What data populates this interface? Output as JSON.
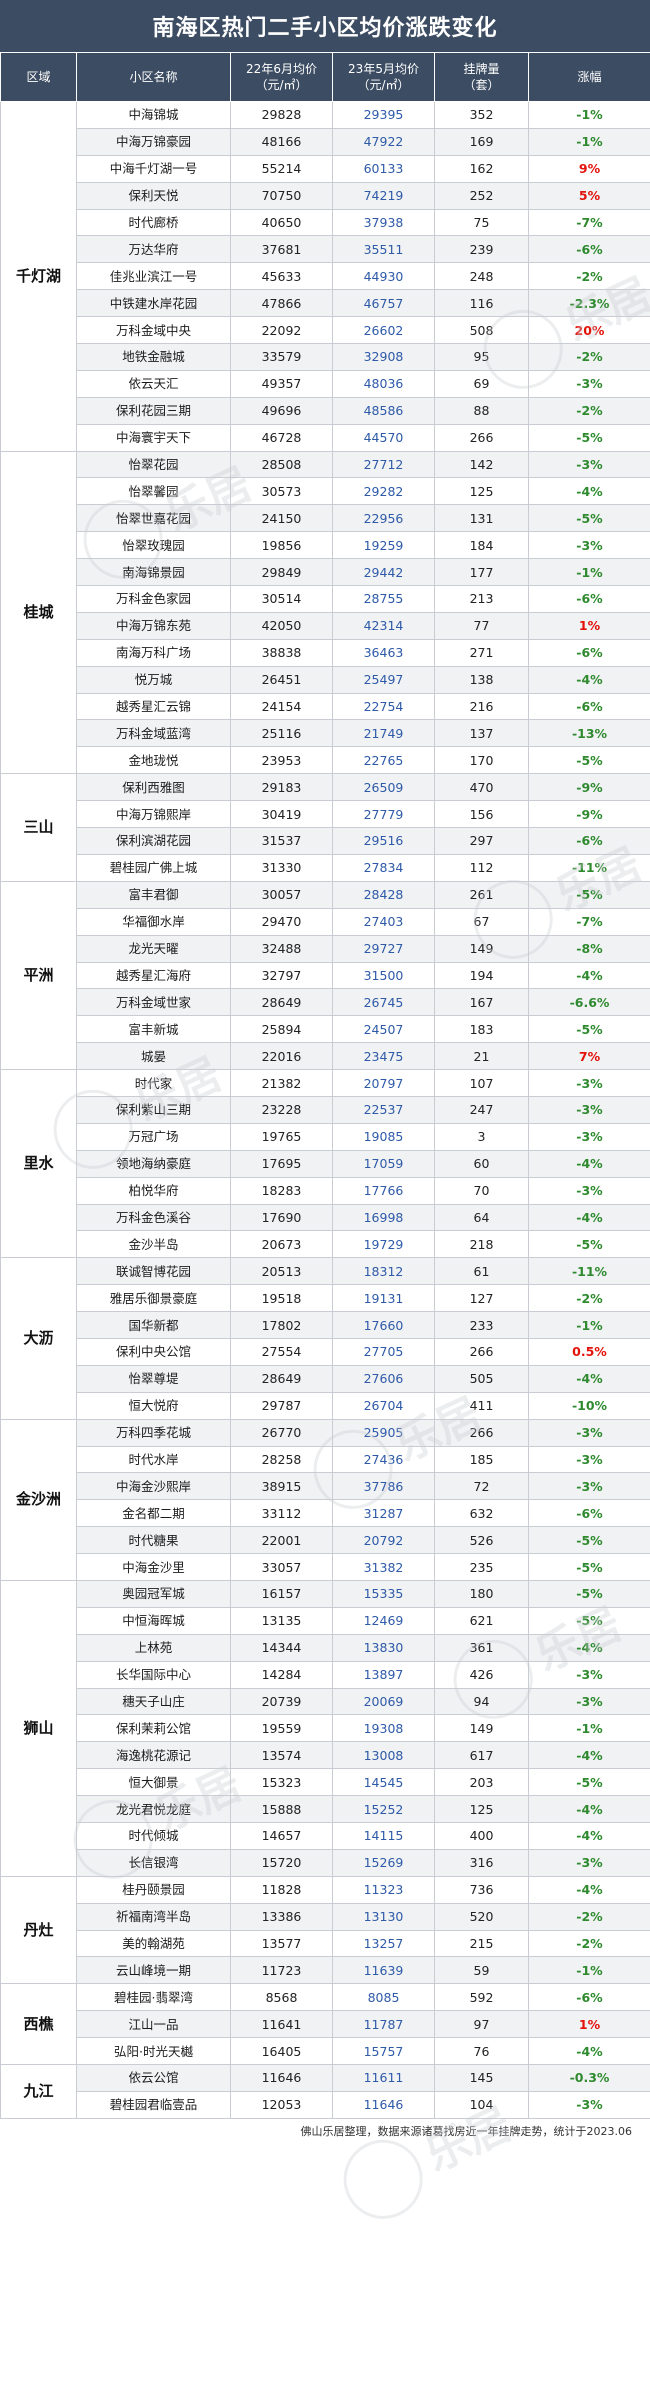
{
  "title": "南海区热门二手小区均价涨跌变化",
  "headers": {
    "district": "区域",
    "name": "小区名称",
    "price22_line1": "22年6月均价",
    "price22_line2": "（元/㎡）",
    "price23_line1": "23年5月均价",
    "price23_line2": "（元/㎡）",
    "listing_line1": "挂牌量",
    "listing_line2": "（套）",
    "change": "涨幅"
  },
  "colors": {
    "header_bg": "#3c4c62",
    "increase": "#e3120b",
    "decrease": "#2f8a2f",
    "price23": "#2e5aa8"
  },
  "groups": [
    {
      "district": "千灯湖",
      "rows": [
        {
          "name": "中海锦城",
          "p22": "29828",
          "p23": "29395",
          "listing": "352",
          "change": "-1%"
        },
        {
          "name": "中海万锦豪园",
          "p22": "48166",
          "p23": "47922",
          "listing": "169",
          "change": "-1%"
        },
        {
          "name": "中海千灯湖一号",
          "p22": "55214",
          "p23": "60133",
          "listing": "162",
          "change": "9%"
        },
        {
          "name": "保利天悦",
          "p22": "70750",
          "p23": "74219",
          "listing": "252",
          "change": "5%"
        },
        {
          "name": "时代廊桥",
          "p22": "40650",
          "p23": "37938",
          "listing": "75",
          "change": "-7%"
        },
        {
          "name": "万达华府",
          "p22": "37681",
          "p23": "35511",
          "listing": "239",
          "change": "-6%"
        },
        {
          "name": "佳兆业滨江一号",
          "p22": "45633",
          "p23": "44930",
          "listing": "248",
          "change": "-2%"
        },
        {
          "name": "中铁建水岸花园",
          "p22": "47866",
          "p23": "46757",
          "listing": "116",
          "change": "-2.3%"
        },
        {
          "name": "万科金域中央",
          "p22": "22092",
          "p23": "26602",
          "listing": "508",
          "change": "20%"
        },
        {
          "name": "地铁金融城",
          "p22": "33579",
          "p23": "32908",
          "listing": "95",
          "change": "-2%"
        },
        {
          "name": "依云天汇",
          "p22": "49357",
          "p23": "48036",
          "listing": "69",
          "change": "-3%"
        },
        {
          "name": "保利花园三期",
          "p22": "49696",
          "p23": "48586",
          "listing": "88",
          "change": "-2%"
        },
        {
          "name": "中海寰宇天下",
          "p22": "46728",
          "p23": "44570",
          "listing": "266",
          "change": "-5%"
        }
      ]
    },
    {
      "district": "桂城",
      "rows": [
        {
          "name": "怡翠花园",
          "p22": "28508",
          "p23": "27712",
          "listing": "142",
          "change": "-3%"
        },
        {
          "name": "怡翠馨园",
          "p22": "30573",
          "p23": "29282",
          "listing": "125",
          "change": "-4%"
        },
        {
          "name": "怡翠世嘉花园",
          "p22": "24150",
          "p23": "22956",
          "listing": "131",
          "change": "-5%"
        },
        {
          "name": "怡翠玫瑰园",
          "p22": "19856",
          "p23": "19259",
          "listing": "184",
          "change": "-3%"
        },
        {
          "name": "南海锦景园",
          "p22": "29849",
          "p23": "29442",
          "listing": "177",
          "change": "-1%"
        },
        {
          "name": "万科金色家园",
          "p22": "30514",
          "p23": "28755",
          "listing": "213",
          "change": "-6%"
        },
        {
          "name": "中海万锦东苑",
          "p22": "42050",
          "p23": "42314",
          "listing": "77",
          "change": "1%"
        },
        {
          "name": "南海万科广场",
          "p22": "38838",
          "p23": "36463",
          "listing": "271",
          "change": "-6%"
        },
        {
          "name": "悦万城",
          "p22": "26451",
          "p23": "25497",
          "listing": "138",
          "change": "-4%"
        },
        {
          "name": "越秀星汇云锦",
          "p22": "24154",
          "p23": "22754",
          "listing": "216",
          "change": "-6%"
        },
        {
          "name": "万科金域蓝湾",
          "p22": "25116",
          "p23": "21749",
          "listing": "137",
          "change": "-13%"
        },
        {
          "name": "金地珑悦",
          "p22": "23953",
          "p23": "22765",
          "listing": "170",
          "change": "-5%"
        }
      ]
    },
    {
      "district": "三山",
      "rows": [
        {
          "name": "保利西雅图",
          "p22": "29183",
          "p23": "26509",
          "listing": "470",
          "change": "-9%"
        },
        {
          "name": "中海万锦熙岸",
          "p22": "30419",
          "p23": "27779",
          "listing": "156",
          "change": "-9%"
        },
        {
          "name": "保利滨湖花园",
          "p22": "31537",
          "p23": "29516",
          "listing": "297",
          "change": "-6%"
        },
        {
          "name": "碧桂园广佛上城",
          "p22": "31330",
          "p23": "27834",
          "listing": "112",
          "change": "-11%"
        }
      ]
    },
    {
      "district": "平洲",
      "rows": [
        {
          "name": "富丰君御",
          "p22": "30057",
          "p23": "28428",
          "listing": "261",
          "change": "-5%"
        },
        {
          "name": "华福御水岸",
          "p22": "29470",
          "p23": "27403",
          "listing": "67",
          "change": "-7%"
        },
        {
          "name": "龙光天曜",
          "p22": "32488",
          "p23": "29727",
          "listing": "149",
          "change": "-8%"
        },
        {
          "name": "越秀星汇海府",
          "p22": "32797",
          "p23": "31500",
          "listing": "194",
          "change": "-4%"
        },
        {
          "name": "万科金域世家",
          "p22": "28649",
          "p23": "26745",
          "listing": "167",
          "change": "-6.6%"
        },
        {
          "name": "富丰新城",
          "p22": "25894",
          "p23": "24507",
          "listing": "183",
          "change": "-5%"
        },
        {
          "name": "城晏",
          "p22": "22016",
          "p23": "23475",
          "listing": "21",
          "change": "7%"
        }
      ]
    },
    {
      "district": "里水",
      "rows": [
        {
          "name": "时代家",
          "p22": "21382",
          "p23": "20797",
          "listing": "107",
          "change": "-3%"
        },
        {
          "name": "保利紫山三期",
          "p22": "23228",
          "p23": "22537",
          "listing": "247",
          "change": "-3%"
        },
        {
          "name": "万冠广场",
          "p22": "19765",
          "p23": "19085",
          "listing": "3",
          "change": "-3%"
        },
        {
          "name": "领地海纳豪庭",
          "p22": "17695",
          "p23": "17059",
          "listing": "60",
          "change": "-4%"
        },
        {
          "name": "柏悦华府",
          "p22": "18283",
          "p23": "17766",
          "listing": "70",
          "change": "-3%"
        },
        {
          "name": "万科金色溪谷",
          "p22": "17690",
          "p23": "16998",
          "listing": "64",
          "change": "-4%"
        },
        {
          "name": "金沙半岛",
          "p22": "20673",
          "p23": "19729",
          "listing": "218",
          "change": "-5%"
        }
      ]
    },
    {
      "district": "大沥",
      "rows": [
        {
          "name": "联诚智博花园",
          "p22": "20513",
          "p23": "18312",
          "listing": "61",
          "change": "-11%"
        },
        {
          "name": "雅居乐御景豪庭",
          "p22": "19518",
          "p23": "19131",
          "listing": "127",
          "change": "-2%"
        },
        {
          "name": "国华新都",
          "p22": "17802",
          "p23": "17660",
          "listing": "233",
          "change": "-1%"
        },
        {
          "name": "保利中央公馆",
          "p22": "27554",
          "p23": "27705",
          "listing": "266",
          "change": "0.5%"
        },
        {
          "name": "怡翠尊堤",
          "p22": "28649",
          "p23": "27606",
          "listing": "505",
          "change": "-4%"
        },
        {
          "name": "恒大悦府",
          "p22": "29787",
          "p23": "26704",
          "listing": "411",
          "change": "-10%"
        }
      ]
    },
    {
      "district": "金沙洲",
      "rows": [
        {
          "name": "万科四季花城",
          "p22": "26770",
          "p23": "25905",
          "listing": "266",
          "change": "-3%"
        },
        {
          "name": "时代水岸",
          "p22": "28258",
          "p23": "27436",
          "listing": "185",
          "change": "-3%"
        },
        {
          "name": "中海金沙熙岸",
          "p22": "38915",
          "p23": "37786",
          "listing": "72",
          "change": "-3%"
        },
        {
          "name": "金名都二期",
          "p22": "33112",
          "p23": "31287",
          "listing": "632",
          "change": "-6%"
        },
        {
          "name": "时代糖果",
          "p22": "22001",
          "p23": "20792",
          "listing": "526",
          "change": "-5%"
        },
        {
          "name": "中海金沙里",
          "p22": "33057",
          "p23": "31382",
          "listing": "235",
          "change": "-5%"
        }
      ]
    },
    {
      "district": "狮山",
      "rows": [
        {
          "name": "奥园冠军城",
          "p22": "16157",
          "p23": "15335",
          "listing": "180",
          "change": "-5%"
        },
        {
          "name": "中恒海晖城",
          "p22": "13135",
          "p23": "12469",
          "listing": "621",
          "change": "-5%"
        },
        {
          "name": "上林苑",
          "p22": "14344",
          "p23": "13830",
          "listing": "361",
          "change": "-4%"
        },
        {
          "name": "长华国际中心",
          "p22": "14284",
          "p23": "13897",
          "listing": "426",
          "change": "-3%"
        },
        {
          "name": "穗天子山庄",
          "p22": "20739",
          "p23": "20069",
          "listing": "94",
          "change": "-3%"
        },
        {
          "name": "保利茉莉公馆",
          "p22": "19559",
          "p23": "19308",
          "listing": "149",
          "change": "-1%"
        },
        {
          "name": "海逸桃花源记",
          "p22": "13574",
          "p23": "13008",
          "listing": "617",
          "change": "-4%"
        },
        {
          "name": "恒大御景",
          "p22": "15323",
          "p23": "14545",
          "listing": "203",
          "change": "-5%"
        },
        {
          "name": "龙光君悦龙庭",
          "p22": "15888",
          "p23": "15252",
          "listing": "125",
          "change": "-4%"
        },
        {
          "name": "时代倾城",
          "p22": "14657",
          "p23": "14115",
          "listing": "400",
          "change": "-4%"
        },
        {
          "name": "长信银湾",
          "p22": "15720",
          "p23": "15269",
          "listing": "316",
          "change": "-3%"
        }
      ]
    },
    {
      "district": "丹灶",
      "rows": [
        {
          "name": "桂丹颐景园",
          "p22": "11828",
          "p23": "11323",
          "listing": "736",
          "change": "-4%"
        },
        {
          "name": "祈福南湾半岛",
          "p22": "13386",
          "p23": "13130",
          "listing": "520",
          "change": "-2%"
        },
        {
          "name": "美的翰湖苑",
          "p22": "13577",
          "p23": "13257",
          "listing": "215",
          "change": "-2%"
        },
        {
          "name": "云山峰境一期",
          "p22": "11723",
          "p23": "11639",
          "listing": "59",
          "change": "-1%"
        }
      ]
    },
    {
      "district": "西樵",
      "rows": [
        {
          "name": "碧桂园·翡翠湾",
          "p22": "8568",
          "p23": "8085",
          "listing": "592",
          "change": "-6%"
        },
        {
          "name": "江山一品",
          "p22": "11641",
          "p23": "11787",
          "listing": "97",
          "change": "1%"
        },
        {
          "name": "弘阳·时光天樾",
          "p22": "16405",
          "p23": "15757",
          "listing": "76",
          "change": "-4%"
        }
      ]
    },
    {
      "district": "九江",
      "rows": [
        {
          "name": "依云公馆",
          "p22": "11646",
          "p23": "11611",
          "listing": "145",
          "change": "-0.3%"
        },
        {
          "name": "碧桂园君临壹品",
          "p22": "12053",
          "p23": "11646",
          "listing": "104",
          "change": "-3%"
        }
      ]
    }
  ],
  "footer": "佛山乐居整理，数据来源诸葛找房近一年挂牌走势，统计于2023.06",
  "watermark_text": "乐居"
}
